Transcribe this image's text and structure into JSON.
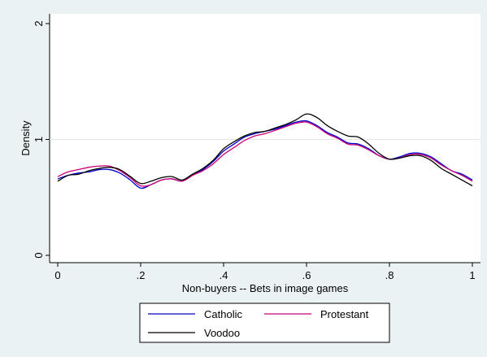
{
  "chart_data": {
    "type": "line",
    "title": "",
    "xlabel": "Non-buyers -- Bets in image games",
    "ylabel": "Density",
    "xlim": [
      0,
      1
    ],
    "ylim": [
      0,
      2
    ],
    "x_ticks": [
      0,
      0.2,
      0.4,
      0.6,
      0.8,
      1
    ],
    "x_tick_labels": [
      "0",
      ".2",
      ".4",
      ".6",
      ".8",
      "1"
    ],
    "y_ticks": [
      0,
      1,
      2
    ],
    "y_tick_labels": [
      "0",
      "1",
      "2"
    ],
    "grid": "horizontal at y=1",
    "legend_position": "bottom",
    "x": [
      0,
      0.025,
      0.05,
      0.075,
      0.1,
      0.125,
      0.15,
      0.175,
      0.2,
      0.225,
      0.25,
      0.275,
      0.3,
      0.325,
      0.35,
      0.375,
      0.4,
      0.425,
      0.45,
      0.475,
      0.5,
      0.525,
      0.55,
      0.575,
      0.6,
      0.625,
      0.65,
      0.675,
      0.7,
      0.725,
      0.75,
      0.775,
      0.8,
      0.825,
      0.85,
      0.875,
      0.9,
      0.925,
      0.95,
      0.975,
      1
    ],
    "series": [
      {
        "name": "Catholic",
        "color": "#0000cc",
        "values": [
          0.66,
          0.69,
          0.71,
          0.72,
          0.74,
          0.74,
          0.71,
          0.65,
          0.58,
          0.61,
          0.65,
          0.66,
          0.64,
          0.69,
          0.74,
          0.81,
          0.9,
          0.96,
          1.02,
          1.05,
          1.07,
          1.09,
          1.12,
          1.15,
          1.16,
          1.12,
          1.06,
          1.02,
          0.97,
          0.96,
          0.92,
          0.86,
          0.83,
          0.85,
          0.88,
          0.88,
          0.85,
          0.79,
          0.73,
          0.7,
          0.65
        ]
      },
      {
        "name": "Protestant",
        "color": "#cc0077",
        "values": [
          0.68,
          0.72,
          0.74,
          0.76,
          0.77,
          0.77,
          0.73,
          0.67,
          0.6,
          0.61,
          0.65,
          0.66,
          0.64,
          0.69,
          0.73,
          0.79,
          0.87,
          0.93,
          0.99,
          1.03,
          1.05,
          1.08,
          1.11,
          1.14,
          1.15,
          1.11,
          1.05,
          1.01,
          0.96,
          0.95,
          0.91,
          0.86,
          0.83,
          0.84,
          0.87,
          0.87,
          0.84,
          0.78,
          0.73,
          0.69,
          0.64
        ]
      },
      {
        "name": "Voodoo",
        "color": "#000000",
        "values": [
          0.64,
          0.69,
          0.7,
          0.73,
          0.75,
          0.76,
          0.74,
          0.68,
          0.62,
          0.64,
          0.67,
          0.68,
          0.65,
          0.7,
          0.75,
          0.82,
          0.92,
          0.98,
          1.03,
          1.06,
          1.07,
          1.1,
          1.13,
          1.17,
          1.22,
          1.19,
          1.12,
          1.07,
          1.03,
          1.02,
          0.96,
          0.88,
          0.83,
          0.84,
          0.86,
          0.86,
          0.82,
          0.75,
          0.7,
          0.65,
          0.6
        ]
      }
    ]
  }
}
